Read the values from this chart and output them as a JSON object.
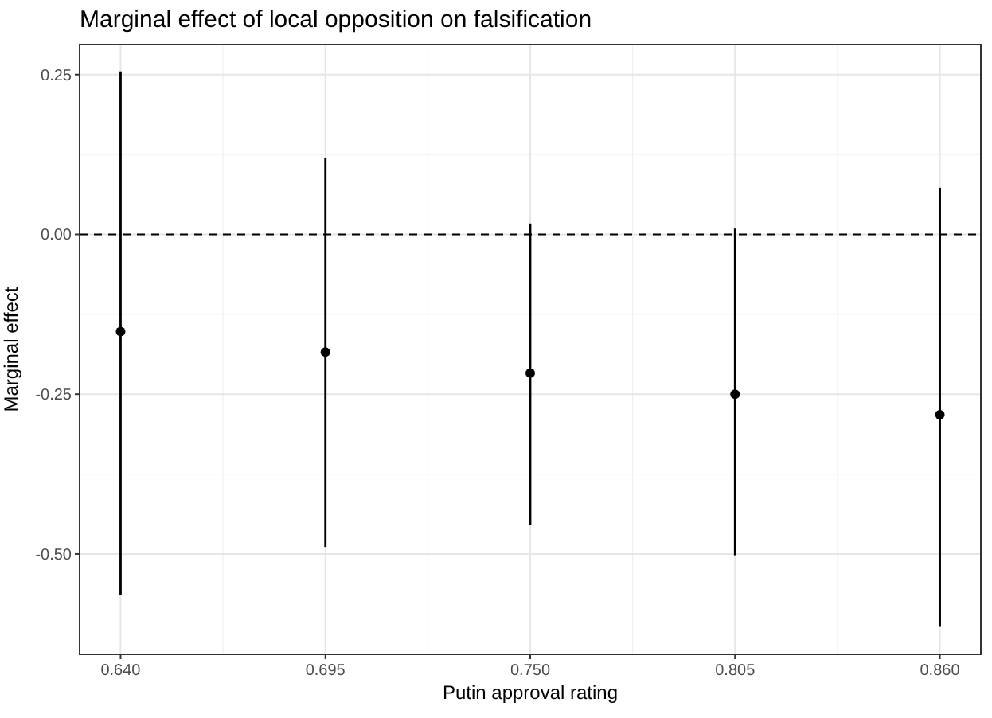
{
  "chart_data": {
    "type": "scatter",
    "title": "Marginal effect of local opposition on falsification",
    "xlabel": "Putin approval rating",
    "ylabel": "Marginal effect",
    "x": [
      0.64,
      0.695,
      0.75,
      0.805,
      0.86
    ],
    "values": [
      -0.152,
      -0.184,
      -0.217,
      -0.25,
      -0.282
    ],
    "errors": [
      [
        -0.564,
        0.255
      ],
      [
        -0.489,
        0.119
      ],
      [
        -0.455,
        0.017
      ],
      [
        -0.502,
        0.009
      ],
      [
        -0.614,
        0.073
      ]
    ],
    "color": "#000000",
    "marker": "circle",
    "xlim": [
      0.629,
      0.871
    ],
    "xticks": [
      {
        "value": 0.64,
        "label": "0.640"
      },
      {
        "value": 0.695,
        "label": "0.695"
      },
      {
        "value": 0.75,
        "label": "0.750"
      },
      {
        "value": 0.805,
        "label": "0.805"
      },
      {
        "value": 0.86,
        "label": "0.860"
      }
    ],
    "ylim": [
      -0.657,
      0.297
    ],
    "yticks": [
      {
        "value": -0.5,
        "label": "-0.50"
      },
      {
        "value": -0.25,
        "label": "-0.25"
      },
      {
        "value": 0,
        "label": "0.00"
      },
      {
        "value": 0.25,
        "label": "0.25"
      }
    ],
    "ref_lines": [
      {
        "axis": "y",
        "value": 0,
        "line_style": "dashed",
        "color": "#000000"
      }
    ],
    "grid": true
  }
}
